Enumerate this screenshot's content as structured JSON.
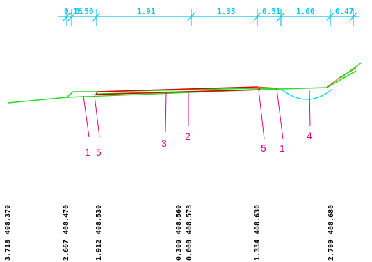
{
  "colors": {
    "dimension": "#00c8e6",
    "ground_line": "#22dd22",
    "pavement": "#e00000",
    "callout": "#e0008a",
    "ditch": "#00d8e8",
    "slope": "#c06a10",
    "text": "#000000"
  },
  "dimensions": [
    "0.16",
    "0.50",
    "1.91",
    "1.33",
    "0.51",
    "1.00",
    "0.47"
  ],
  "callouts": [
    "1",
    "5",
    "3",
    "2",
    "5",
    "1",
    "4"
  ],
  "elevations": [
    "408.370",
    "408.470",
    "408.530",
    "408.560",
    "408.573",
    "408.630",
    "408.680"
  ],
  "offsets": [
    "3.718",
    "2.667",
    "1.912",
    "0.300",
    "0.000",
    "1.334",
    "2.799"
  ]
}
